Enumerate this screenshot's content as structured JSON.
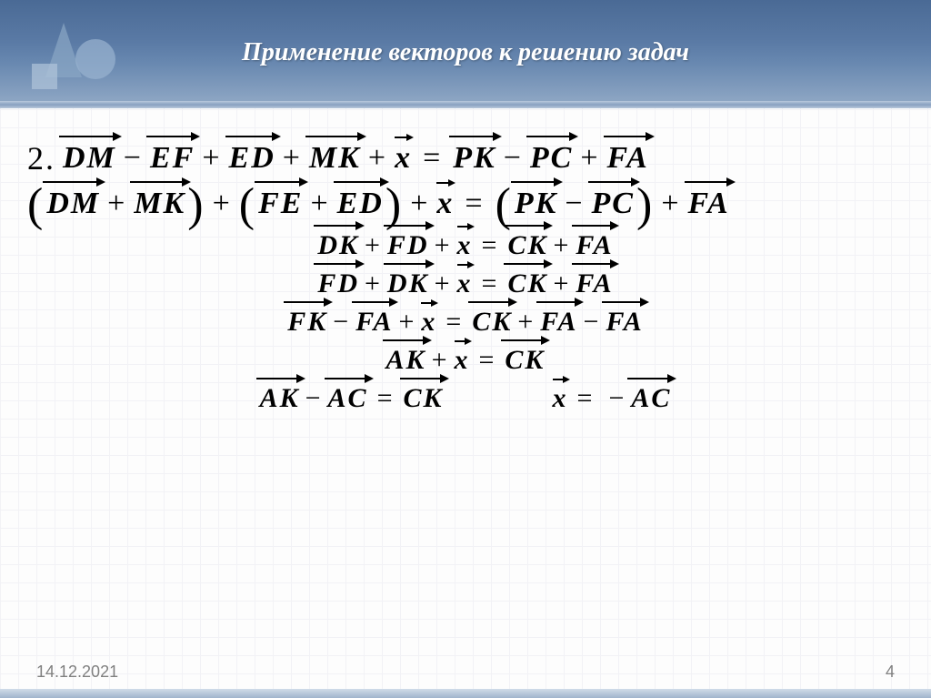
{
  "slide": {
    "title": "Применение векторов к решению задач",
    "date": "14.12.2021",
    "page_number": "4",
    "problem_number": "2.",
    "colors": {
      "header_gradient_top": "#4a6a95",
      "header_gradient_bottom": "#90a8c5",
      "title_text": "#ffffff",
      "body_text": "#000000",
      "footer_text": "#808080",
      "grid": "#e8e8f0",
      "background": "#fdfdfd"
    },
    "fontsize": {
      "title": 28,
      "equations": 32,
      "footer": 18
    },
    "equations": [
      {
        "tokens": [
          "DM",
          "−",
          "EF",
          "+",
          "ED",
          "+",
          "MK",
          "+",
          "x",
          "=",
          "PK",
          "−",
          "PC",
          "+",
          "FA"
        ],
        "layout": "first"
      },
      {
        "tokens": [
          "(",
          "DM",
          "+",
          "MK",
          ")",
          "+",
          "(",
          "FE",
          "+",
          "ED",
          ")",
          "+",
          "x",
          "=",
          "(",
          "PK",
          "−",
          "PC",
          ")",
          "+",
          "FA"
        ],
        "layout": "second"
      },
      {
        "tokens": [
          "DK",
          "+",
          "FD",
          "+",
          "x",
          "=",
          "CK",
          "+",
          "FA"
        ],
        "layout": "mid"
      },
      {
        "tokens": [
          "FD",
          "+",
          "DK",
          "+",
          "x",
          "=",
          "CK",
          "+",
          "FA"
        ],
        "layout": "mid"
      },
      {
        "tokens": [
          "FK",
          "−",
          "FA",
          "+",
          "x",
          "=",
          "CK",
          "+",
          "FA",
          "−",
          "FA"
        ],
        "layout": "mid"
      },
      {
        "tokens": [
          "AK",
          "+",
          "x",
          "=",
          "CK"
        ],
        "layout": "mid"
      },
      {
        "pair": [
          {
            "tokens": [
              "AK",
              "−",
              "AC",
              "=",
              "CK"
            ]
          },
          {
            "tokens": [
              "x",
              "=",
              "−",
              "AC"
            ]
          }
        ],
        "layout": "last-pair"
      }
    ]
  }
}
